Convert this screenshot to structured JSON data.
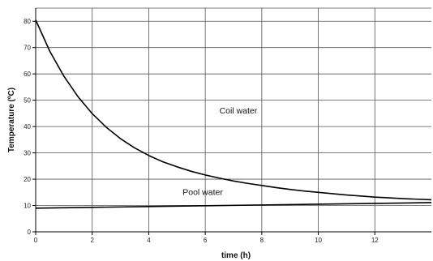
{
  "chart_data": {
    "type": "line",
    "xlabel": "time (h)",
    "ylabel": "Temperature (ºC)",
    "xlim": [
      0,
      14
    ],
    "ylim": [
      0,
      85
    ],
    "xticks": [
      0,
      2,
      4,
      6,
      8,
      10,
      12
    ],
    "yticks": [
      0,
      10,
      20,
      30,
      40,
      50,
      60,
      70,
      80
    ],
    "grid": true,
    "legend": "none",
    "series": [
      {
        "name": "Coil water",
        "color": "#000000",
        "x": [
          0,
          0.5,
          1,
          1.5,
          2,
          2.5,
          3,
          3.5,
          4,
          4.5,
          5,
          5.5,
          6,
          6.5,
          7,
          7.5,
          8,
          8.5,
          9,
          9.5,
          10,
          10.5,
          11,
          11.5,
          12,
          12.5,
          13,
          13.5,
          14
        ],
        "values": [
          80.5,
          68.6,
          59.1,
          51.3,
          44.9,
          39.7,
          35.4,
          31.9,
          29.0,
          26.6,
          24.7,
          23.0,
          21.6,
          20.4,
          19.3,
          18.4,
          17.6,
          16.8,
          16.1,
          15.5,
          15.0,
          14.5,
          14.0,
          13.6,
          13.2,
          12.9,
          12.6,
          12.4,
          12.2
        ]
      },
      {
        "name": "Pool water",
        "color": "#000000",
        "x": [
          0,
          2,
          4,
          6,
          8,
          10,
          12,
          14
        ],
        "values": [
          9.0,
          9.3,
          9.6,
          9.9,
          10.2,
          10.5,
          10.8,
          11.1
        ]
      }
    ],
    "annotations": [
      {
        "text": "Coil water",
        "x": 6.5,
        "y": 45
      },
      {
        "text": "Pool water",
        "x": 5.2,
        "y": 14
      }
    ]
  }
}
